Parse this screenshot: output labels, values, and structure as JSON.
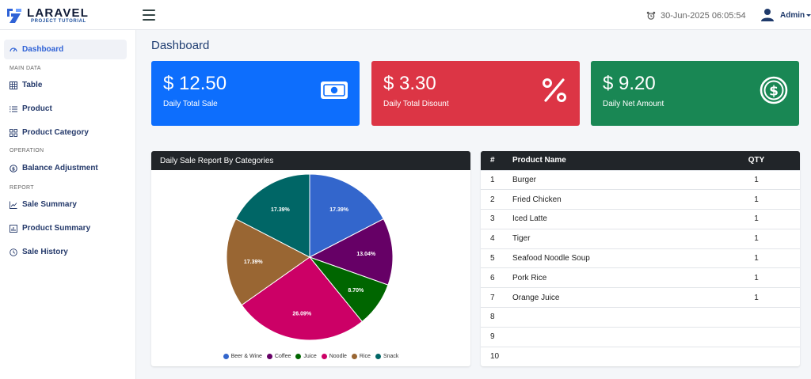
{
  "brand": {
    "title": "LARAVEL",
    "subtitle": "PROJECT TUTORIAL"
  },
  "header": {
    "datetime": "30-Jun-2025 06:05:54",
    "user": "Admin"
  },
  "sidebar": {
    "dashboard": "Dashboard",
    "main_data": "MAIN DATA",
    "table": "Table",
    "product": "Product",
    "product_category": "Product Category",
    "operation": "OPERATION",
    "balance_adjustment": "Balance Adjustment",
    "report": "REPORT",
    "sale_summary": "Sale Summary",
    "product_summary": "Product Summary",
    "sale_history": "Sale History"
  },
  "page_title": "Dashboard",
  "cards": [
    {
      "value": "$ 12.50",
      "label": "Daily Total Sale",
      "color": "#0d6efd",
      "icon": "money-icon"
    },
    {
      "value": "$ 3.30",
      "label": "Daily Total Disount",
      "color": "#dc3545",
      "icon": "percent-icon"
    },
    {
      "value": "$ 9.20",
      "label": "Daily Net Amount",
      "color": "#198754",
      "icon": "dollar-coin-icon"
    }
  ],
  "chart_panel": {
    "title": "Daily Sale Report By Categories"
  },
  "chart_data": {
    "type": "pie",
    "categories": [
      "Beer & Wine",
      "Coffee",
      "Juice",
      "Noodle",
      "Rice",
      "Snack"
    ],
    "values": [
      17.39,
      13.04,
      8.7,
      26.09,
      17.39,
      17.39
    ],
    "labels": [
      "17.39%",
      "13.04%",
      "8.70%",
      "26.09%",
      "17.39%",
      "17.39%"
    ],
    "colors": [
      "#3366cc",
      "#660066",
      "#006600",
      "#cc0066",
      "#996633",
      "#006666"
    ],
    "legend": "bottom"
  },
  "product_table": {
    "headers": [
      "#",
      "Product Name",
      "QTY"
    ],
    "rows": [
      [
        "1",
        "Burger",
        "1"
      ],
      [
        "2",
        "Fried Chicken",
        "1"
      ],
      [
        "3",
        "Iced Latte",
        "1"
      ],
      [
        "4",
        "Tiger",
        "1"
      ],
      [
        "5",
        "Seafood Noodle Soup",
        "1"
      ],
      [
        "6",
        "Pork Rice",
        "1"
      ],
      [
        "7",
        "Orange Juice",
        "1"
      ],
      [
        "8",
        "",
        ""
      ],
      [
        "9",
        "",
        ""
      ],
      [
        "10",
        "",
        ""
      ]
    ]
  }
}
